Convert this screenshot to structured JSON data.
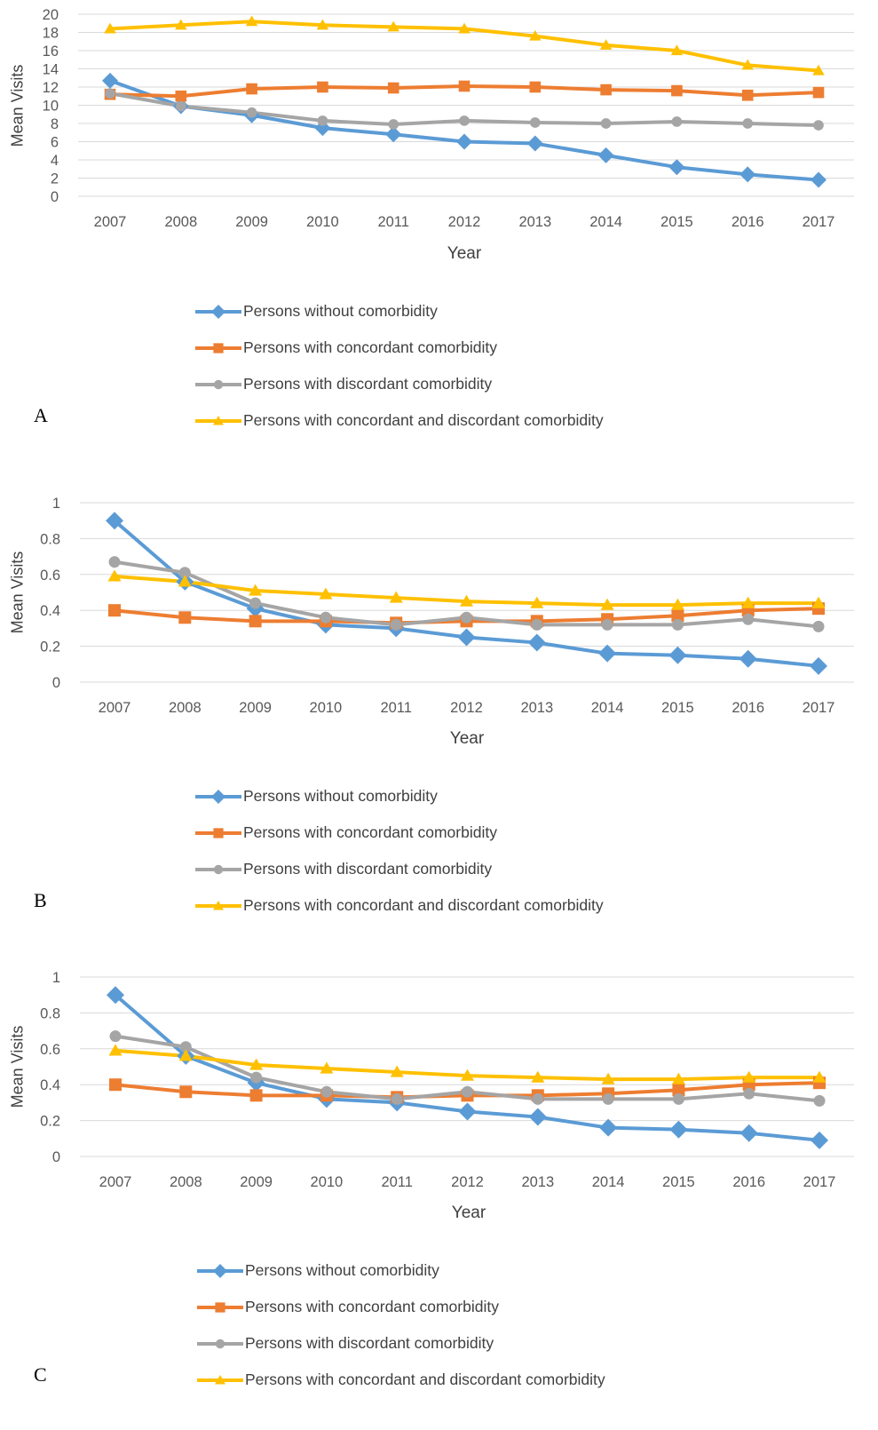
{
  "colors": {
    "series_0": "#5B9BD5",
    "series_1": "#ED7D31",
    "series_2": "#A5A5A5",
    "series_3": "#FFC000",
    "grid": "#d9d9d9",
    "tick_text": "#595959"
  },
  "chart_data": [
    {
      "type": "line",
      "panel_label": "A",
      "ylabel": "Mean Visits",
      "xlabel": "Year",
      "ylim": [
        0,
        20
      ],
      "yticks": [
        "0",
        "2",
        "4",
        "6",
        "8",
        "10",
        "12",
        "14",
        "16",
        "18",
        "20"
      ],
      "categories": [
        "2007",
        "2008",
        "2009",
        "2010",
        "2011",
        "2012",
        "2013",
        "2014",
        "2015",
        "2016",
        "2017"
      ],
      "grid": true,
      "legend_position": "bottom",
      "series": [
        {
          "name": "Persons without comorbidity",
          "marker": "diamond",
          "values": [
            12.7,
            9.9,
            8.9,
            7.5,
            6.8,
            6.0,
            5.8,
            4.5,
            3.2,
            2.4,
            1.8
          ]
        },
        {
          "name": "Persons with concordant comorbidity",
          "marker": "square",
          "values": [
            11.2,
            11.0,
            11.8,
            12.0,
            11.9,
            12.1,
            12.0,
            11.7,
            11.6,
            11.1,
            11.4
          ]
        },
        {
          "name": "Persons with  discordant comorbidity",
          "marker": "circle",
          "values": [
            11.3,
            9.9,
            9.2,
            8.3,
            7.9,
            8.3,
            8.1,
            8.0,
            8.2,
            8.0,
            7.8
          ]
        },
        {
          "name": "Persons with concordant and discordant comorbidity",
          "marker": "triangle",
          "values": [
            18.4,
            18.8,
            19.2,
            18.8,
            18.6,
            18.4,
            17.6,
            16.6,
            16.0,
            14.4,
            13.8
          ]
        }
      ]
    },
    {
      "type": "line",
      "panel_label": "B",
      "ylabel": "Mean Visits",
      "xlabel": "Year",
      "ylim": [
        0,
        1
      ],
      "yticks": [
        "0",
        "0.2",
        "0.4",
        "0.6",
        "0.8",
        "1"
      ],
      "categories": [
        "2007",
        "2008",
        "2009",
        "2010",
        "2011",
        "2012",
        "2013",
        "2014",
        "2015",
        "2016",
        "2017"
      ],
      "grid": true,
      "legend_position": "bottom",
      "series": [
        {
          "name": "Persons without comorbidity",
          "marker": "diamond",
          "values": [
            0.9,
            0.56,
            0.41,
            0.32,
            0.3,
            0.25,
            0.22,
            0.16,
            0.15,
            0.13,
            0.09
          ]
        },
        {
          "name": "Persons with concordant comorbidity",
          "marker": "square",
          "values": [
            0.4,
            0.36,
            0.34,
            0.34,
            0.33,
            0.34,
            0.34,
            0.35,
            0.37,
            0.4,
            0.41
          ]
        },
        {
          "name": "Persons with  discordant comorbidity",
          "marker": "circle",
          "values": [
            0.67,
            0.61,
            0.44,
            0.36,
            0.32,
            0.36,
            0.32,
            0.32,
            0.32,
            0.35,
            0.31
          ]
        },
        {
          "name": "Persons with concordant and discordant comorbidity",
          "marker": "triangle",
          "values": [
            0.59,
            0.56,
            0.51,
            0.49,
            0.47,
            0.45,
            0.44,
            0.43,
            0.43,
            0.44,
            0.44
          ]
        }
      ]
    },
    {
      "type": "line",
      "panel_label": "C",
      "ylabel": "Mean Visits",
      "xlabel": "Year",
      "ylim": [
        0,
        1
      ],
      "yticks": [
        "0",
        "0.2",
        "0.4",
        "0.6",
        "0.8",
        "1"
      ],
      "categories": [
        "2007",
        "2008",
        "2009",
        "2010",
        "2011",
        "2012",
        "2013",
        "2014",
        "2015",
        "2016",
        "2017"
      ],
      "grid": true,
      "legend_position": "bottom",
      "series": [
        {
          "name": "Persons without comorbidity",
          "marker": "diamond",
          "values": [
            0.9,
            0.56,
            0.41,
            0.32,
            0.3,
            0.25,
            0.22,
            0.16,
            0.15,
            0.13,
            0.09
          ]
        },
        {
          "name": "Persons with concordant comorbidity",
          "marker": "square",
          "values": [
            0.4,
            0.36,
            0.34,
            0.34,
            0.33,
            0.34,
            0.34,
            0.35,
            0.37,
            0.4,
            0.41
          ]
        },
        {
          "name": "Persons with  discordant comorbidity",
          "marker": "circle",
          "values": [
            0.67,
            0.61,
            0.44,
            0.36,
            0.32,
            0.36,
            0.32,
            0.32,
            0.32,
            0.35,
            0.31
          ]
        },
        {
          "name": "Persons with concordant and discordant comorbidity",
          "marker": "triangle",
          "values": [
            0.59,
            0.56,
            0.51,
            0.49,
            0.47,
            0.45,
            0.44,
            0.43,
            0.43,
            0.44,
            0.44
          ]
        }
      ]
    }
  ]
}
